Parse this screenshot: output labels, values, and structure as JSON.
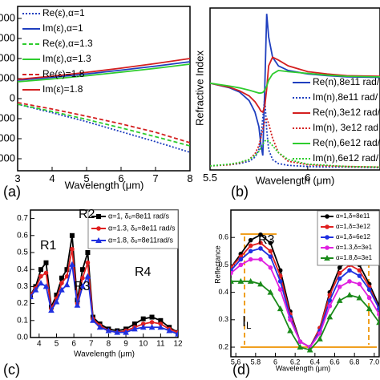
{
  "chart_data": [
    {
      "type": "line",
      "panel_label": "(a)",
      "x_label": "Wavelength (μm)",
      "xlim": [
        3,
        8
      ],
      "xticks": [
        3,
        4,
        5,
        6,
        7,
        8
      ],
      "ylim": [
        -3600,
        4600
      ],
      "yticks": [
        {
          "value": 4000,
          "label": "000"
        },
        {
          "value": 3000,
          "label": "000"
        },
        {
          "value": 2000,
          "label": "000"
        },
        {
          "value": 1000,
          "label": "000"
        },
        0,
        {
          "value": -1000,
          "label": "000"
        },
        {
          "value": -2000,
          "label": "000"
        },
        {
          "value": -3000,
          "label": "000"
        }
      ],
      "x": [
        3,
        4,
        5,
        6,
        7,
        8
      ],
      "series": [
        {
          "name": "Re(ε),α=1",
          "color": "#1f3fbf",
          "dash": "dotted",
          "values": [
            -280,
            -700,
            -1150,
            -1650,
            -2150,
            -2680
          ]
        },
        {
          "name": "Im(ε),α=1",
          "color": "#1f3fbf",
          "dash": "solid",
          "values": [
            920,
            1060,
            1230,
            1420,
            1620,
            1840
          ]
        },
        {
          "name": "Re(ε),α=1.3",
          "color": "#2ecc2e",
          "dash": "dashed",
          "values": [
            -280,
            -640,
            -1040,
            -1460,
            -1900,
            -2360
          ]
        },
        {
          "name": "Im(ε),α=1.3",
          "color": "#2ecc2e",
          "dash": "solid",
          "values": [
            840,
            980,
            1140,
            1320,
            1510,
            1720
          ]
        },
        {
          "name": "Re(ε)=1.8",
          "color": "#d42020",
          "dash": "dashed",
          "values": [
            -200,
            -520,
            -880,
            -1260,
            -1680,
            -2200
          ]
        },
        {
          "name": "Im(ε)=1.8",
          "color": "#d42020",
          "dash": "solid",
          "values": [
            960,
            1120,
            1310,
            1520,
            1750,
            2000
          ]
        }
      ]
    },
    {
      "type": "line",
      "panel_label": "(b)",
      "x_label": "Wavelength (μm)",
      "y_label": "Refractive Index",
      "xlim": [
        5.5,
        6.37
      ],
      "xticks": [
        5.5,
        6
      ],
      "ylim": [
        0,
        2.8
      ],
      "x": [
        5.5,
        5.6,
        5.65,
        5.7,
        5.73,
        5.75,
        5.76,
        5.77,
        5.78,
        5.79,
        5.8,
        5.82,
        5.85,
        5.9,
        6.0,
        6.1,
        6.2,
        6.37
      ],
      "series": [
        {
          "name": "Re(n),8e11 rad/",
          "color": "#1f3fbf",
          "dash": "solid",
          "values": [
            1.5,
            1.42,
            1.35,
            1.2,
            1.0,
            0.75,
            0.45,
            0.25,
            1.4,
            2.7,
            2.3,
            1.95,
            1.8,
            1.72,
            1.66,
            1.63,
            1.61,
            1.6
          ]
        },
        {
          "name": "Im(n),8e11 rad/",
          "color": "#1f3fbf",
          "dash": "dotted",
          "values": [
            0.07,
            0.09,
            0.11,
            0.15,
            0.22,
            0.35,
            0.55,
            0.9,
            1.25,
            0.7,
            0.35,
            0.18,
            0.11,
            0.08,
            0.06,
            0.05,
            0.05,
            0.04
          ]
        },
        {
          "name": "Re(n),3e12 rad/",
          "color": "#d42020",
          "dash": "solid",
          "values": [
            1.5,
            1.43,
            1.37,
            1.28,
            1.18,
            1.08,
            1.02,
            1.0,
            1.1,
            1.4,
            1.8,
            1.95,
            1.9,
            1.8,
            1.7,
            1.66,
            1.63,
            1.62
          ]
        },
        {
          "name": "Im(n), 3e12 rad",
          "color": "#d42020",
          "dash": "dotted",
          "values": [
            0.07,
            0.09,
            0.12,
            0.18,
            0.28,
            0.42,
            0.55,
            0.7,
            0.85,
            0.9,
            0.8,
            0.55,
            0.3,
            0.15,
            0.09,
            0.07,
            0.06,
            0.05
          ]
        },
        {
          "name": "Re(n),6e12 rad/",
          "color": "#2ecc2e",
          "dash": "solid",
          "values": [
            1.5,
            1.45,
            1.42,
            1.38,
            1.35,
            1.33,
            1.33,
            1.34,
            1.38,
            1.45,
            1.55,
            1.66,
            1.72,
            1.7,
            1.67,
            1.64,
            1.62,
            1.61
          ]
        },
        {
          "name": "Im(n),6e12 rad/",
          "color": "#2ecc2e",
          "dash": "dotted",
          "values": [
            0.07,
            0.1,
            0.13,
            0.18,
            0.25,
            0.32,
            0.38,
            0.44,
            0.5,
            0.52,
            0.5,
            0.42,
            0.3,
            0.18,
            0.1,
            0.08,
            0.06,
            0.05
          ]
        }
      ]
    },
    {
      "type": "line",
      "panel_label": "(c)",
      "x_label": "Wavelength (μm)",
      "xlim": [
        3.5,
        12
      ],
      "xticks": [
        4,
        5,
        6,
        7,
        8,
        9,
        10,
        11,
        12
      ],
      "ylim": [
        0,
        0.75
      ],
      "yticks": [
        {
          "value": 0,
          "label": "0.0"
        },
        0.1,
        0.2,
        0.3,
        0.4,
        0.5,
        0.6,
        0.7
      ],
      "annotations": [
        {
          "text": "R1"
        },
        {
          "text": "R2"
        },
        {
          "text": "R3"
        },
        {
          "text": "R4"
        }
      ],
      "x": [
        3.5,
        3.8,
        4.1,
        4.4,
        4.7,
        5.0,
        5.3,
        5.6,
        5.9,
        6.2,
        6.5,
        6.8,
        7.1,
        7.5,
        8,
        8.5,
        9,
        9.5,
        10,
        10.5,
        11,
        11.5,
        12
      ],
      "series": [
        {
          "name": "α=1, δₒ=8e11 rad/s",
          "color": "#000000",
          "dash": "solid",
          "marker": "square",
          "values": [
            0.25,
            0.3,
            0.4,
            0.44,
            0.18,
            0.25,
            0.35,
            0.4,
            0.6,
            0.22,
            0.4,
            0.5,
            0.12,
            0.08,
            0.05,
            0.04,
            0.05,
            0.08,
            0.11,
            0.12,
            0.1,
            0.06,
            0.03
          ]
        },
        {
          "name": "α=1.3, δₒ=8e11 rad/s",
          "color": "#e02020",
          "dash": "solid",
          "marker": "circle",
          "values": [
            0.25,
            0.29,
            0.36,
            0.38,
            0.17,
            0.23,
            0.32,
            0.36,
            0.52,
            0.2,
            0.35,
            0.44,
            0.11,
            0.07,
            0.04,
            0.03,
            0.04,
            0.06,
            0.08,
            0.09,
            0.08,
            0.05,
            0.03
          ]
        },
        {
          "name": "α=1.8, δₒ=8e11rad/s",
          "color": "#2030e0",
          "dash": "solid",
          "marker": "triangle",
          "values": [
            0.24,
            0.28,
            0.32,
            0.3,
            0.16,
            0.21,
            0.28,
            0.31,
            0.43,
            0.19,
            0.3,
            0.36,
            0.1,
            0.06,
            0.04,
            0.03,
            0.03,
            0.05,
            0.06,
            0.06,
            0.06,
            0.04,
            0.02
          ]
        }
      ]
    },
    {
      "type": "line",
      "panel_label": "(d)",
      "x_label": "Wavelength (μm)",
      "y_label": "Reflectance",
      "xlim": [
        5.55,
        7.05
      ],
      "xticks": [
        5.6,
        5.8,
        6,
        6.2,
        6.4,
        6.6,
        6.8,
        {
          "value": 7,
          "label": "7.0"
        }
      ],
      "ylim": [
        0.165,
        0.7
      ],
      "yticks": [
        0.2,
        0.3,
        0.4,
        0.5,
        0.6
      ],
      "annotations": [
        {
          "text": "R3"
        },
        {
          "text": "I",
          "sub": "L"
        }
      ],
      "x": [
        5.55,
        5.65,
        5.75,
        5.85,
        5.95,
        6.05,
        6.15,
        6.25,
        6.35,
        6.45,
        6.55,
        6.65,
        6.75,
        6.85,
        6.95,
        7.05
      ],
      "series": [
        {
          "name": "α=1,δ=8e11",
          "color": "#000000",
          "dash": "solid",
          "marker": "circle",
          "values": [
            0.49,
            0.54,
            0.59,
            0.61,
            0.58,
            0.48,
            0.33,
            0.22,
            0.2,
            0.27,
            0.4,
            0.49,
            0.52,
            0.5,
            0.43,
            0.35
          ]
        },
        {
          "name": "α=1,δ=3e12",
          "color": "#e02020",
          "dash": "solid",
          "marker": "circle",
          "values": [
            0.49,
            0.53,
            0.57,
            0.58,
            0.55,
            0.46,
            0.32,
            0.22,
            0.2,
            0.27,
            0.39,
            0.47,
            0.5,
            0.48,
            0.42,
            0.34
          ]
        },
        {
          "name": "α=1,δ=6e12",
          "color": "#2030e0",
          "dash": "solid",
          "marker": "circle",
          "values": [
            0.48,
            0.52,
            0.55,
            0.56,
            0.53,
            0.44,
            0.31,
            0.22,
            0.2,
            0.26,
            0.37,
            0.45,
            0.48,
            0.46,
            0.41,
            0.34
          ]
        },
        {
          "name": "α=1.3,δ=3e1",
          "color": "#e020e0",
          "dash": "solid",
          "marker": "circle",
          "values": [
            0.47,
            0.5,
            0.52,
            0.52,
            0.49,
            0.41,
            0.3,
            0.22,
            0.2,
            0.25,
            0.35,
            0.42,
            0.44,
            0.43,
            0.38,
            0.32
          ]
        },
        {
          "name": "α=1.8,δ=3e1",
          "color": "#1a8a1a",
          "dash": "solid",
          "marker": "triangle",
          "values": [
            0.44,
            0.44,
            0.44,
            0.43,
            0.4,
            0.34,
            0.26,
            0.2,
            0.19,
            0.23,
            0.31,
            0.37,
            0.39,
            0.38,
            0.34,
            0.29
          ]
        }
      ]
    }
  ]
}
